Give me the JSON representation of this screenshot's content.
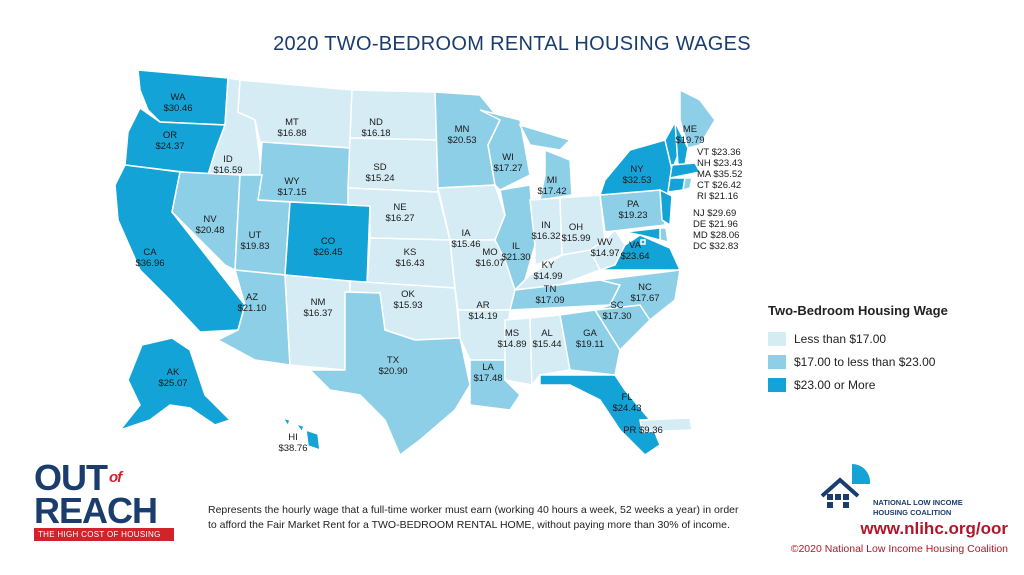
{
  "title": "2020 TWO-BEDROOM RENTAL HOUSING WAGES",
  "colors": {
    "low": "#d5ecf5",
    "mid": "#8ecfe8",
    "high": "#13a3d6",
    "border": "#ffffff",
    "brand_blue": "#1b3d6e",
    "brand_red": "#d0232a"
  },
  "legend": {
    "title": "Two-Bedroom Housing Wage",
    "items": [
      {
        "label": "Less than $17.00",
        "class": "low"
      },
      {
        "label": "$17.00 to less than $23.00",
        "class": "mid"
      },
      {
        "label": "$23.00 or More",
        "class": "high"
      }
    ]
  },
  "states": [
    {
      "abbr": "WA",
      "wage": "$30.46",
      "class": "high"
    },
    {
      "abbr": "OR",
      "wage": "$24.37",
      "class": "high"
    },
    {
      "abbr": "CA",
      "wage": "$36.96",
      "class": "high"
    },
    {
      "abbr": "ID",
      "wage": "$16.59",
      "class": "low"
    },
    {
      "abbr": "NV",
      "wage": "$20.48",
      "class": "mid"
    },
    {
      "abbr": "MT",
      "wage": "$16.88",
      "class": "low"
    },
    {
      "abbr": "WY",
      "wage": "$17.15",
      "class": "mid"
    },
    {
      "abbr": "UT",
      "wage": "$19.83",
      "class": "mid"
    },
    {
      "abbr": "AZ",
      "wage": "$21.10",
      "class": "mid"
    },
    {
      "abbr": "CO",
      "wage": "$26.45",
      "class": "high"
    },
    {
      "abbr": "NM",
      "wage": "$16.37",
      "class": "low"
    },
    {
      "abbr": "ND",
      "wage": "$16.18",
      "class": "low"
    },
    {
      "abbr": "SD",
      "wage": "$15.24",
      "class": "low"
    },
    {
      "abbr": "NE",
      "wage": "$16.27",
      "class": "low"
    },
    {
      "abbr": "KS",
      "wage": "$16.43",
      "class": "low"
    },
    {
      "abbr": "OK",
      "wage": "$15.93",
      "class": "low"
    },
    {
      "abbr": "TX",
      "wage": "$20.90",
      "class": "mid"
    },
    {
      "abbr": "MN",
      "wage": "$20.53",
      "class": "mid"
    },
    {
      "abbr": "IA",
      "wage": "$15.46",
      "class": "low"
    },
    {
      "abbr": "MO",
      "wage": "$16.07",
      "class": "low"
    },
    {
      "abbr": "AR",
      "wage": "$14.19",
      "class": "low"
    },
    {
      "abbr": "LA",
      "wage": "$17.48",
      "class": "mid"
    },
    {
      "abbr": "WI",
      "wage": "$17.27",
      "class": "mid"
    },
    {
      "abbr": "IL",
      "wage": "$21.30",
      "class": "mid"
    },
    {
      "abbr": "MS",
      "wage": "$14.89",
      "class": "low"
    },
    {
      "abbr": "MI",
      "wage": "$17.42",
      "class": "mid"
    },
    {
      "abbr": "IN",
      "wage": "$16.32",
      "class": "low"
    },
    {
      "abbr": "KY",
      "wage": "$14.99",
      "class": "low"
    },
    {
      "abbr": "TN",
      "wage": "$17.09",
      "class": "mid"
    },
    {
      "abbr": "AL",
      "wage": "$15.44",
      "class": "low"
    },
    {
      "abbr": "OH",
      "wage": "$15.99",
      "class": "low"
    },
    {
      "abbr": "GA",
      "wage": "$19.11",
      "class": "mid"
    },
    {
      "abbr": "FL",
      "wage": "$24.43",
      "class": "high"
    },
    {
      "abbr": "SC",
      "wage": "$17.30",
      "class": "mid"
    },
    {
      "abbr": "NC",
      "wage": "$17.67",
      "class": "mid"
    },
    {
      "abbr": "WV",
      "wage": "$14.97",
      "class": "low"
    },
    {
      "abbr": "VA",
      "wage": "$23.64",
      "class": "high"
    },
    {
      "abbr": "PA",
      "wage": "$19.23",
      "class": "mid"
    },
    {
      "abbr": "NY",
      "wage": "$32.53",
      "class": "high"
    },
    {
      "abbr": "ME",
      "wage": "$19.79",
      "class": "mid"
    },
    {
      "abbr": "VT",
      "wage": "$23.36",
      "class": "high"
    },
    {
      "abbr": "NH",
      "wage": "$23.43",
      "class": "high"
    },
    {
      "abbr": "MA",
      "wage": "$35.52",
      "class": "high"
    },
    {
      "abbr": "CT",
      "wage": "$26.42",
      "class": "high"
    },
    {
      "abbr": "RI",
      "wage": "$21.16",
      "class": "mid"
    },
    {
      "abbr": "NJ",
      "wage": "$29.69",
      "class": "high"
    },
    {
      "abbr": "DE",
      "wage": "$21.96",
      "class": "mid"
    },
    {
      "abbr": "MD",
      "wage": "$28.06",
      "class": "high"
    },
    {
      "abbr": "DC",
      "wage": "$32.83",
      "class": "high"
    },
    {
      "abbr": "AK",
      "wage": "$25.07",
      "class": "high"
    },
    {
      "abbr": "HI",
      "wage": "$38.76",
      "class": "high"
    },
    {
      "abbr": "PR",
      "wage": "$9.36",
      "class": "low"
    }
  ],
  "logo": {
    "line1": "OUT",
    "of": "of",
    "line2": "REACH",
    "tagline": "THE HIGH COST OF HOUSING"
  },
  "footnote": "Represents the hourly wage that a full-time worker must earn (working 40 hours a week, 52 weeks a year) in order to afford the Fair Market Rent for a TWO-BEDROOM RENTAL HOME, without paying more than 30% of income.",
  "org": {
    "name_line1": "NATIONAL LOW INCOME",
    "name_line2": "HOUSING COALITION",
    "url": "www.nlihc.org/oor",
    "copyright": "©2020 National Low Income Housing Coalition"
  }
}
